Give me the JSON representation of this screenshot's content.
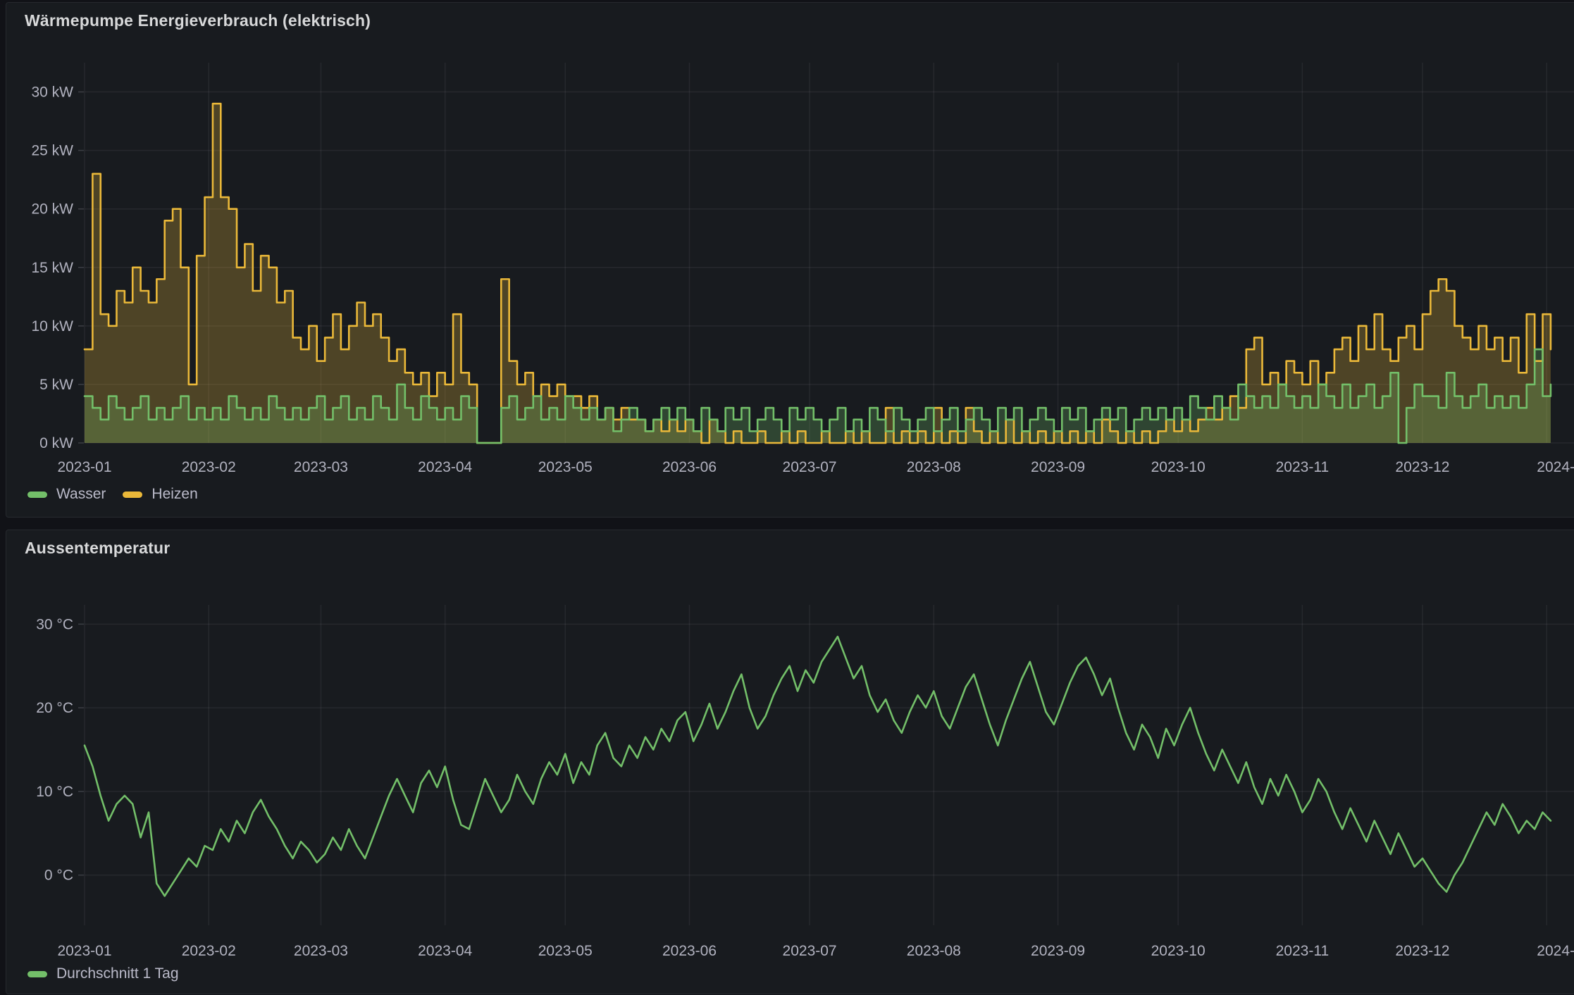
{
  "colors": {
    "page_bg": "#111217",
    "panel_bg": "#181b1f",
    "panel_border": "#26292e",
    "grid": "rgba(204,204,220,0.08)",
    "tick_mark": "rgba(204,204,220,0.20)",
    "tick_text": "rgba(204,204,220,0.85)",
    "title_text": "#d8d9da",
    "green": "#73BF69",
    "yellow": "#EAB839"
  },
  "panels": [
    {
      "title": "Wärmepumpe Energieverbrauch (elektrisch)",
      "legend": [
        {
          "label": "Wasser",
          "color": "#73BF69"
        },
        {
          "label": "Heizen",
          "color": "#EAB839"
        }
      ]
    },
    {
      "title": "Aussentemperatur",
      "legend": [
        {
          "label": "Durchschnitt 1 Tag",
          "color": "#73BF69"
        }
      ]
    }
  ],
  "chart_data": [
    {
      "type": "area",
      "title": "Wärmepumpe Energieverbrauch (elektrisch)",
      "render": "step",
      "unit": "kW",
      "sample_days": 2,
      "x_span_days": 372,
      "ylim": [
        0,
        32.5
      ],
      "grid": true,
      "legend_position": "bottom",
      "y_ticks": [
        {
          "label": "0 kW",
          "value": 0
        },
        {
          "label": "5 kW",
          "value": 5
        },
        {
          "label": "10 kW",
          "value": 10
        },
        {
          "label": "15 kW",
          "value": 15
        },
        {
          "label": "20 kW",
          "value": 20
        },
        {
          "label": "25 kW",
          "value": 25
        },
        {
          "label": "30 kW",
          "value": 30
        }
      ],
      "x_ticks": [
        {
          "label": "2023-01",
          "day": 0
        },
        {
          "label": "2023-02",
          "day": 31
        },
        {
          "label": "2023-03",
          "day": 59
        },
        {
          "label": "2023-04",
          "day": 90
        },
        {
          "label": "2023-05",
          "day": 120
        },
        {
          "label": "2023-06",
          "day": 151
        },
        {
          "label": "2023-07",
          "day": 181
        },
        {
          "label": "2023-08",
          "day": 212
        },
        {
          "label": "2023-09",
          "day": 243
        },
        {
          "label": "2023-10",
          "day": 273
        },
        {
          "label": "2023-11",
          "day": 304
        },
        {
          "label": "2023-12",
          "day": 334
        },
        {
          "label": "2024-",
          "day": 365
        }
      ],
      "series": [
        {
          "name": "Wasser",
          "color": "#73BF69",
          "fill_opacity": 0.26,
          "values": [
            4,
            3,
            2,
            4,
            3,
            2,
            3,
            4,
            2,
            3,
            2,
            3,
            4,
            2,
            3,
            2,
            3,
            2,
            4,
            3,
            2,
            3,
            2,
            4,
            3,
            2,
            3,
            2,
            3,
            4,
            2,
            3,
            4,
            2,
            3,
            2,
            4,
            3,
            2,
            5,
            3,
            2,
            4,
            3,
            2,
            3,
            2,
            4,
            3,
            0,
            0,
            0,
            3,
            4,
            2,
            3,
            4,
            2,
            3,
            2,
            4,
            3,
            2,
            3,
            2,
            3,
            1,
            2,
            3,
            2,
            1,
            2,
            3,
            2,
            3,
            2,
            1,
            3,
            2,
            1,
            3,
            2,
            3,
            1,
            2,
            3,
            2,
            1,
            3,
            2,
            3,
            2,
            1,
            2,
            3,
            1,
            2,
            1,
            3,
            2,
            1,
            3,
            2,
            1,
            2,
            3,
            1,
            2,
            3,
            1,
            2,
            3,
            2,
            1,
            3,
            2,
            3,
            1,
            2,
            3,
            2,
            1,
            3,
            2,
            3,
            1,
            2,
            3,
            2,
            3,
            1,
            2,
            3,
            2,
            3,
            2,
            3,
            2,
            4,
            3,
            2,
            4,
            3,
            2,
            5,
            4,
            3,
            4,
            3,
            5,
            4,
            3,
            4,
            3,
            5,
            4,
            3,
            5,
            3,
            4,
            5,
            3,
            4,
            6,
            0,
            3,
            5,
            4,
            4,
            3,
            6,
            4,
            3,
            4,
            5,
            3,
            4,
            3,
            4,
            3,
            5,
            8,
            4,
            5
          ]
        },
        {
          "name": "Heizen",
          "color": "#EAB839",
          "fill_opacity": 0.26,
          "values": [
            8,
            23,
            11,
            10,
            13,
            12,
            15,
            13,
            12,
            14,
            19,
            20,
            15,
            5,
            16,
            21,
            29,
            21,
            20,
            15,
            17,
            13,
            16,
            15,
            12,
            13,
            9,
            8,
            10,
            7,
            9,
            11,
            8,
            10,
            12,
            10,
            11,
            9,
            7,
            8,
            6,
            5,
            6,
            4,
            6,
            5,
            11,
            6,
            5,
            0,
            0,
            0,
            14,
            7,
            5,
            6,
            4,
            5,
            4,
            5,
            4,
            4,
            3,
            4,
            2,
            3,
            2,
            3,
            2,
            2,
            1,
            2,
            1,
            2,
            1,
            2,
            1,
            0,
            2,
            1,
            0,
            1,
            0,
            0,
            1,
            0,
            0,
            1,
            0,
            1,
            0,
            0,
            1,
            0,
            0,
            1,
            0,
            1,
            0,
            0,
            3,
            0,
            1,
            0,
            1,
            0,
            3,
            0,
            1,
            0,
            3,
            1,
            0,
            1,
            0,
            2,
            0,
            1,
            0,
            1,
            0,
            1,
            0,
            1,
            0,
            1,
            0,
            2,
            1,
            0,
            1,
            0,
            1,
            0,
            1,
            2,
            1,
            2,
            1,
            2,
            3,
            2,
            3,
            4,
            3,
            8,
            9,
            5,
            6,
            5,
            7,
            6,
            5,
            7,
            5,
            6,
            8,
            9,
            7,
            10,
            8,
            11,
            8,
            7,
            9,
            10,
            8,
            11,
            13,
            14,
            13,
            10,
            9,
            8,
            10,
            8,
            9,
            7,
            9,
            6,
            11,
            7,
            11,
            8
          ]
        }
      ]
    },
    {
      "type": "line",
      "title": "Aussentemperatur",
      "render": "line",
      "unit": "°C",
      "sample_days": 2,
      "x_span_days": 372,
      "ylim": [
        -6,
        32.3
      ],
      "grid": true,
      "legend_position": "bottom",
      "y_ticks": [
        {
          "label": "0 °C",
          "value": 0
        },
        {
          "label": "10 °C",
          "value": 10
        },
        {
          "label": "20 °C",
          "value": 20
        },
        {
          "label": "30 °C",
          "value": 30
        }
      ],
      "x_ticks": [
        {
          "label": "2023-01",
          "day": 0
        },
        {
          "label": "2023-02",
          "day": 31
        },
        {
          "label": "2023-03",
          "day": 59
        },
        {
          "label": "2023-04",
          "day": 90
        },
        {
          "label": "2023-05",
          "day": 120
        },
        {
          "label": "2023-06",
          "day": 151
        },
        {
          "label": "2023-07",
          "day": 181
        },
        {
          "label": "2023-08",
          "day": 212
        },
        {
          "label": "2023-09",
          "day": 243
        },
        {
          "label": "2023-10",
          "day": 273
        },
        {
          "label": "2023-11",
          "day": 304
        },
        {
          "label": "2023-12",
          "day": 334
        },
        {
          "label": "2024-",
          "day": 365
        }
      ],
      "series": [
        {
          "name": "Durchschnitt 1 Tag",
          "color": "#73BF69",
          "fill_opacity": 0,
          "values": [
            15.5,
            13,
            9.5,
            6.5,
            8.5,
            9.5,
            8.5,
            4.5,
            7.5,
            -1,
            -2.5,
            -1,
            0.5,
            2,
            1,
            3.5,
            3,
            5.5,
            4,
            6.5,
            5,
            7.5,
            9,
            7,
            5.5,
            3.5,
            2,
            4,
            3,
            1.5,
            2.5,
            4.5,
            3,
            5.5,
            3.5,
            2,
            4.5,
            7,
            9.5,
            11.5,
            9.5,
            7.5,
            11,
            12.5,
            10.5,
            13,
            9,
            6,
            5.5,
            8.5,
            11.5,
            9.5,
            7.5,
            9,
            12,
            10,
            8.5,
            11.5,
            13.5,
            12,
            14.5,
            11,
            13.5,
            12,
            15.5,
            17,
            14,
            13,
            15.5,
            14,
            16.5,
            15,
            17.5,
            16,
            18.5,
            19.5,
            16,
            18,
            20.5,
            17.5,
            19.5,
            22,
            24,
            20,
            17.5,
            19,
            21.5,
            23.5,
            25,
            22,
            24.5,
            23,
            25.5,
            27,
            28.5,
            26,
            23.5,
            25,
            21.5,
            19.5,
            21,
            18.5,
            17,
            19.5,
            21.5,
            20,
            22,
            19,
            17.5,
            20,
            22.5,
            24,
            21,
            18,
            15.5,
            18.5,
            21,
            23.5,
            25.5,
            22.5,
            19.5,
            18,
            20.5,
            23,
            25,
            26,
            24,
            21.5,
            23.5,
            20,
            17,
            15,
            18,
            16.5,
            14,
            17.5,
            15.5,
            18,
            20,
            17,
            14.5,
            12.5,
            15,
            13,
            11,
            13.5,
            10.5,
            8.5,
            11.5,
            9.5,
            12,
            10,
            7.5,
            9,
            11.5,
            10,
            7.5,
            5.5,
            8,
            6,
            4,
            6.5,
            4.5,
            2.5,
            5,
            3,
            1,
            2,
            0.5,
            -1,
            -2,
            0,
            1.5,
            3.5,
            5.5,
            7.5,
            6,
            8.5,
            7,
            5,
            6.5,
            5.5,
            7.5,
            6.5
          ]
        }
      ]
    }
  ]
}
